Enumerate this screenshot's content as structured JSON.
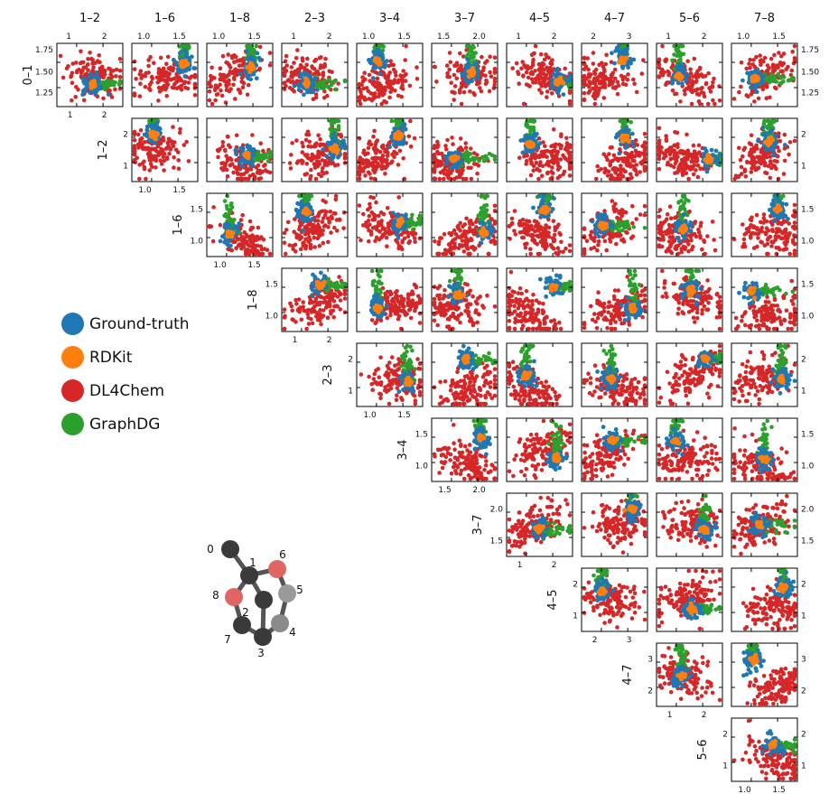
{
  "legend": [
    {
      "label": "Ground-truth",
      "color": "#1f77b4"
    },
    {
      "label": "RDKit",
      "color": "#ff7f0e"
    },
    {
      "label": "DL4Chem",
      "color": "#d62728"
    },
    {
      "label": "GraphDG",
      "color": "#2ca02c"
    }
  ],
  "chart_data": {
    "type": "scatter",
    "layout": "lower-triangle pair-plot matrix of interatomic distances",
    "column_bonds": [
      "1–2",
      "1–6",
      "1–8",
      "2–3",
      "3–4",
      "3–7",
      "4–5",
      "4–7",
      "5–6",
      "7–8"
    ],
    "row_bonds": [
      "0–1",
      "1–2",
      "1–6",
      "1–8",
      "2–3",
      "3–4",
      "3–7",
      "4–5",
      "4–7",
      "5–6"
    ],
    "row_axis_labels": [
      {
        "row": "0–1",
        "ticks": [
          "1.25",
          "1.50",
          "1.75"
        ],
        "range": [
          1.15,
          1.8
        ]
      },
      {
        "row": "1–2",
        "ticks": [
          "1",
          "2"
        ],
        "range": [
          0.85,
          2.2
        ]
      },
      {
        "row": "1–6",
        "ticks": [
          "1.0",
          "1.5"
        ],
        "range": [
          0.9,
          1.65
        ]
      },
      {
        "row": "1–8",
        "ticks": [
          "1.0",
          "1.5"
        ],
        "range": [
          0.8,
          1.6
        ]
      },
      {
        "row": "2–3",
        "ticks": [
          "1",
          "2"
        ],
        "range": [
          0.85,
          2.2
        ]
      },
      {
        "row": "3–4",
        "ticks": [
          "1.0",
          "1.5"
        ],
        "range": [
          0.85,
          1.7
        ]
      },
      {
        "row": "3–7",
        "ticks": [
          "1.5",
          "2.0"
        ],
        "range": [
          1.3,
          2.3
        ]
      },
      {
        "row": "4–5",
        "ticks": [
          "1",
          "2"
        ],
        "range": [
          0.7,
          2.4
        ]
      },
      {
        "row": "4–7",
        "ticks": [
          "2",
          "3"
        ],
        "range": [
          1.5,
          3.1
        ]
      },
      {
        "row": "5–6",
        "ticks": [
          "1",
          "2"
        ],
        "range": [
          0.6,
          2.2
        ]
      }
    ],
    "column_axis_labels": [
      {
        "column": "1–2",
        "ticks": [
          "1",
          "2"
        ]
      },
      {
        "column": "1–6",
        "ticks": [
          "1.0",
          "1.5"
        ]
      },
      {
        "column": "1–8",
        "ticks": [
          "1.0",
          "1.5"
        ]
      },
      {
        "column": "2–3",
        "ticks": [
          "1",
          "2"
        ]
      },
      {
        "column": "3–4",
        "ticks": [
          "1.0",
          "1.5"
        ]
      },
      {
        "column": "3–7",
        "ticks": [
          "1.5",
          "2.0"
        ]
      },
      {
        "column": "4–5",
        "ticks": [
          "1",
          "2"
        ]
      },
      {
        "column": "4–7",
        "ticks": [
          "2",
          "3"
        ]
      },
      {
        "column": "5–6",
        "ticks": [
          "1",
          "2"
        ]
      },
      {
        "column": "7–8",
        "ticks": [
          "1.0",
          "1.5"
        ]
      }
    ],
    "series": [
      {
        "name": "Ground-truth",
        "color": "#1f77b4",
        "description": "tight cluster near equilibrium bond lengths"
      },
      {
        "name": "RDKit",
        "color": "#ff7f0e",
        "description": "very tight cluster at the centre of the ground-truth cloud"
      },
      {
        "name": "DL4Chem",
        "color": "#d62728",
        "description": "broad diffuse cloud spanning most of each axis"
      },
      {
        "name": "GraphDG",
        "color": "#2ca02c",
        "description": "elongated streaks along one axis through the ground-truth cluster"
      }
    ],
    "molecule": {
      "atoms": [
        {
          "label": "0",
          "element": "C"
        },
        {
          "label": "1",
          "element": "C"
        },
        {
          "label": "2",
          "element": "C"
        },
        {
          "label": "3",
          "element": "C"
        },
        {
          "label": "4",
          "element": "C"
        },
        {
          "label": "5",
          "element": "C"
        },
        {
          "label": "6",
          "element": "O"
        },
        {
          "label": "7",
          "element": "C"
        },
        {
          "label": "8",
          "element": "O"
        }
      ],
      "bonds": [
        [
          "0",
          "1"
        ],
        [
          "1",
          "6"
        ],
        [
          "6",
          "5"
        ],
        [
          "5",
          "4"
        ],
        [
          "4",
          "3"
        ],
        [
          "3",
          "7"
        ],
        [
          "7",
          "8"
        ],
        [
          "8",
          "1"
        ],
        [
          "1",
          "2"
        ],
        [
          "2",
          "3"
        ]
      ]
    }
  }
}
